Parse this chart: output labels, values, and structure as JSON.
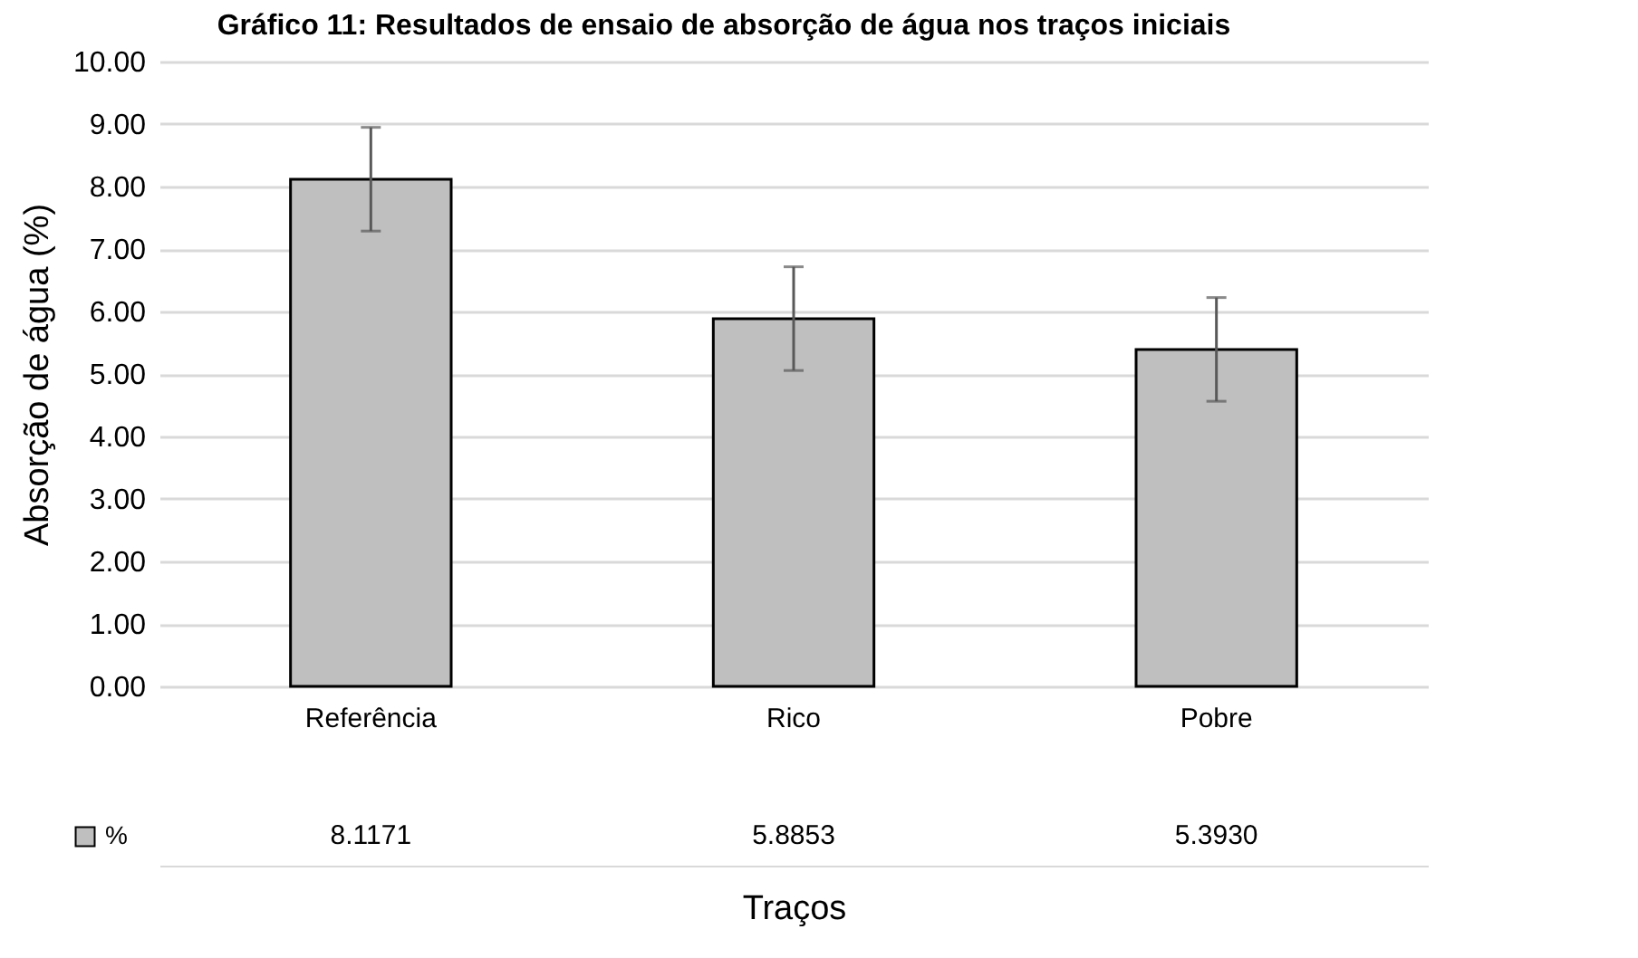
{
  "chart_data": {
    "type": "bar",
    "title": "Gráfico 11: Resultados de ensaio de absorção de água nos traços iniciais",
    "xlabel": "Traços",
    "ylabel": "Absorção de água (%)",
    "categories": [
      "Referência",
      "Rico",
      "Pobre"
    ],
    "series": [
      {
        "name": "%",
        "color": "#bfbfbf",
        "values": [
          8.1171,
          5.8853,
          5.393
        ],
        "errors": [
          0.83,
          0.83,
          0.83
        ],
        "value_labels": [
          "8.1171",
          "5.8853",
          "5.3930"
        ]
      }
    ],
    "ylim": [
      0,
      10
    ],
    "yticks": [
      {
        "value": 0,
        "label": "0.00"
      },
      {
        "value": 1,
        "label": "1.00"
      },
      {
        "value": 2,
        "label": "2.00"
      },
      {
        "value": 3,
        "label": "3.00"
      },
      {
        "value": 4,
        "label": "4.00"
      },
      {
        "value": 5,
        "label": "5.00"
      },
      {
        "value": 6,
        "label": "6.00"
      },
      {
        "value": 7,
        "label": "7.00"
      },
      {
        "value": 8,
        "label": "8.00"
      },
      {
        "value": 9,
        "label": "9.00"
      },
      {
        "value": 10,
        "label": "10.00"
      }
    ],
    "grid": "y",
    "legend": "bottom left"
  }
}
